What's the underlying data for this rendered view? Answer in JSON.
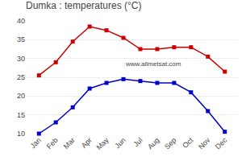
{
  "chart_data": {
    "type": "line",
    "title": "Dumka : temperatures (°C)",
    "categories": [
      "Jan",
      "Feb",
      "Mar",
      "Apr",
      "May",
      "Jun",
      "Jul",
      "Aug",
      "Sep",
      "Oct",
      "Nov",
      "Dec"
    ],
    "series": [
      {
        "color": "#cc0000",
        "values": [
          25.5,
          29.0,
          34.5,
          38.5,
          37.5,
          35.5,
          32.5,
          32.5,
          33.0,
          33.0,
          30.5,
          26.5
        ]
      },
      {
        "color": "#0000cc",
        "values": [
          10.0,
          13.0,
          17.0,
          22.0,
          23.5,
          24.5,
          24.0,
          23.5,
          23.5,
          21.0,
          16.0,
          10.5
        ]
      }
    ],
    "marker": "square",
    "ylim": [
      10,
      40
    ],
    "yticks": [
      10,
      15,
      20,
      25,
      30,
      35,
      40
    ],
    "grid": true,
    "annotations": [
      "www.allmetsat.com"
    ]
  }
}
